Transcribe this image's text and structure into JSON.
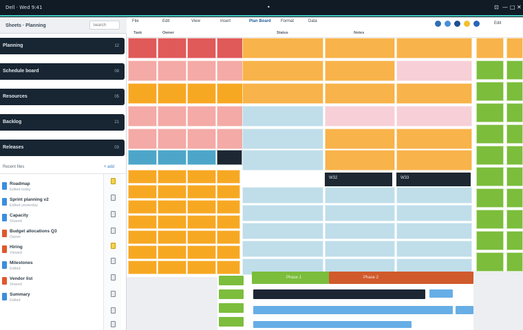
{
  "window": {
    "menu_text": "Dell · Wed 9:41",
    "center_mark": "•",
    "controls": [
      "⊡",
      "—",
      "□",
      "✕"
    ]
  },
  "sidebar": {
    "title": "Sheets · Planning",
    "filter_placeholder": "Search",
    "nav": [
      {
        "label": "Planning",
        "count": "12"
      },
      {
        "label": "Schedule board",
        "count": "08"
      },
      {
        "label": "Resources",
        "count": "05"
      },
      {
        "label": "Backlog",
        "count": "21"
      },
      {
        "label": "Releases",
        "count": "03"
      }
    ],
    "files_header": "Recent files",
    "files_action": "+ add",
    "files": [
      {
        "name": "Roadmap",
        "meta": "Edited today",
        "color": "#3b8ede"
      },
      {
        "name": "Sprint planning v2",
        "meta": "Edited yesterday",
        "color": "#3b8ede"
      },
      {
        "name": "Capacity",
        "meta": "Shared",
        "color": "#3b8ede"
      },
      {
        "name": "Budget allocations Q3",
        "meta": "Owner",
        "color": "#e0582d"
      },
      {
        "name": "Hiring",
        "meta": "Viewed",
        "color": "#e0582d"
      },
      {
        "name": "Milestones",
        "meta": "Edited",
        "color": "#3b8ede"
      },
      {
        "name": "Vendor list",
        "meta": "Shared",
        "color": "#e0582d"
      },
      {
        "name": "Summary",
        "meta": "Edited",
        "color": "#3b8ede"
      }
    ]
  },
  "main": {
    "tabs": [
      "File",
      "Edit",
      "View",
      "Insert",
      "Format",
      "Data"
    ],
    "doc_title": "Plan Board",
    "columns": [
      "Task",
      "Owner",
      "Status",
      "Notes"
    ],
    "hdr_text": "Edit",
    "hdr_icons": [
      {
        "name": "globe-icon",
        "color": "#2f6fb3"
      },
      {
        "name": "cloud-icon",
        "color": "#4a8fd6"
      },
      {
        "name": "share-icon",
        "color": "#1d4f91"
      },
      {
        "name": "sun-icon",
        "color": "#f2c12e"
      },
      {
        "name": "profile-icon",
        "color": "#2a66b8"
      }
    ],
    "dark_labels": [
      "W32",
      "W33"
    ],
    "gantt_labels": [
      "Phase 1",
      "Phase 2"
    ]
  },
  "colors": {
    "red": "#e05a5a",
    "pink": "#f4aaa6",
    "orange": "#f7a823",
    "light_orange": "#f8b34a",
    "blue_teal": "#4da6c9",
    "light_blue": "#bfdeea",
    "green": "#7cbd3c",
    "pale_pink": "#f7cfd6",
    "dark": "#1c2733",
    "sky": "#67aee6"
  }
}
